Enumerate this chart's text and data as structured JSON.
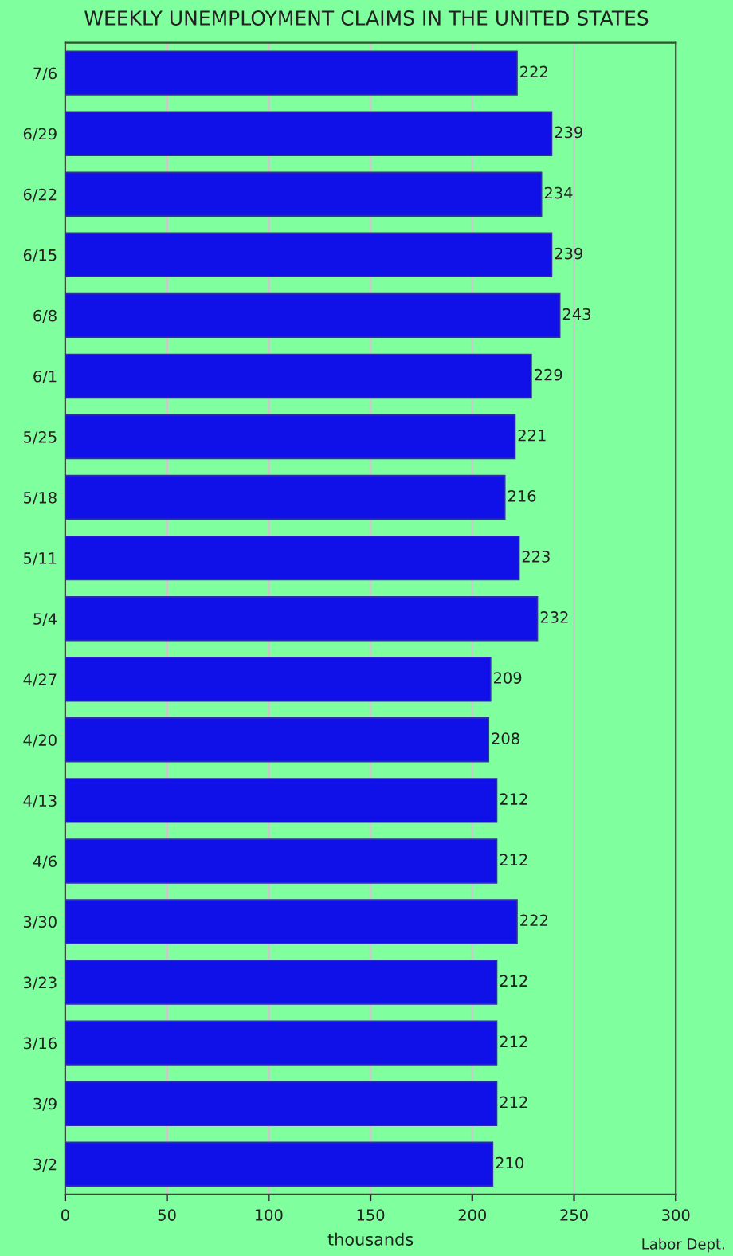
{
  "chart_data": {
    "type": "bar",
    "orientation": "horizontal",
    "title": "WEEKLY UNEMPLOYMENT CLAIMS IN THE UNITED STATES",
    "xlabel": "thousands",
    "categories": [
      "7/6",
      "6/29",
      "6/22",
      "6/15",
      "6/8",
      "6/1",
      "5/25",
      "5/18",
      "5/11",
      "5/4",
      "4/27",
      "4/20",
      "4/13",
      "4/6",
      "3/30",
      "3/23",
      "3/16",
      "3/9",
      "3/2"
    ],
    "values": [
      222,
      239,
      234,
      239,
      243,
      229,
      221,
      216,
      223,
      232,
      209,
      208,
      212,
      212,
      222,
      212,
      212,
      212,
      210
    ],
    "color": "#1010e8",
    "xlim": [
      0,
      300
    ],
    "xticks": [
      0,
      50,
      100,
      150,
      200,
      250,
      300
    ],
    "grid": "x",
    "data_labels": true,
    "annotations": [
      "Labor Dept."
    ]
  }
}
